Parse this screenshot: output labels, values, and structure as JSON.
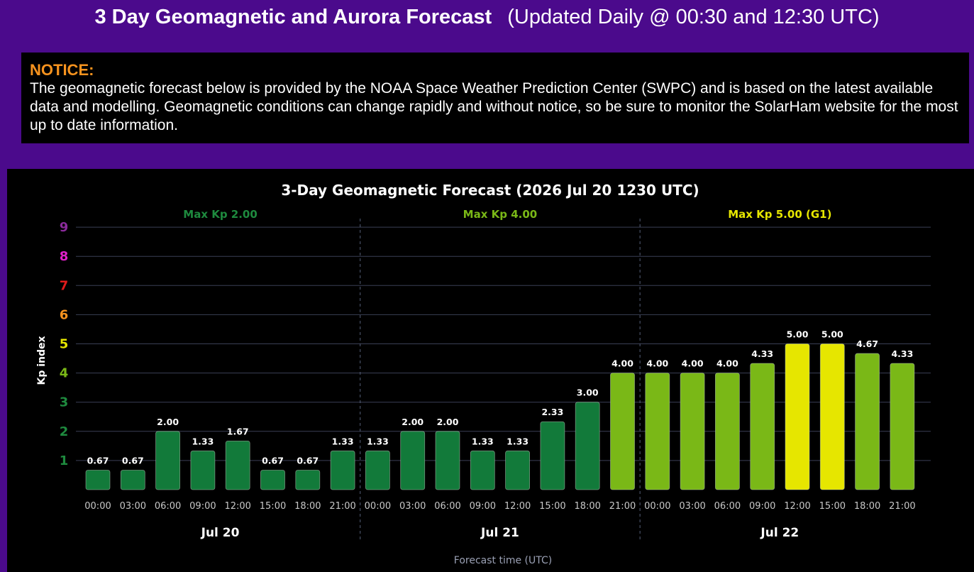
{
  "page": {
    "title_main": "3 Day Geomagnetic and Aurora Forecast",
    "title_sub": "(Updated Daily @ 00:30 and 12:30 UTC)"
  },
  "notice": {
    "heading": "NOTICE:",
    "body": "The geomagnetic forecast below is provided by the NOAA Space Weather Prediction Center (SWPC) and is based on the latest available data and modelling. Geomagnetic conditions can change rapidly and without notice, so be sure to monitor the SolarHam website for the most up to date information."
  },
  "chart_data": {
    "type": "bar",
    "title": "3-Day Geomagnetic Forecast (2026 Jul 20 1230 UTC)",
    "ylabel": "Kp index",
    "xlabel": "Forecast time (UTC)",
    "ylim": [
      0,
      9
    ],
    "grid": true,
    "y_ticks": [
      {
        "label": "1",
        "color": "#1e8a3e"
      },
      {
        "label": "2",
        "color": "#1e8a3e"
      },
      {
        "label": "3",
        "color": "#1e8a3e"
      },
      {
        "label": "4",
        "color": "#7ab817"
      },
      {
        "label": "5",
        "color": "#e6e600"
      },
      {
        "label": "6",
        "color": "#f7931e"
      },
      {
        "label": "7",
        "color": "#e01b1b"
      },
      {
        "label": "8",
        "color": "#e020c8"
      },
      {
        "label": "9",
        "color": "#8a2a9a"
      }
    ],
    "days": [
      {
        "label": "Jul 20",
        "max_label": "Max Kp 2.00",
        "max_color": "#1e8a3e"
      },
      {
        "label": "Jul 21",
        "max_label": "Max Kp 4.00",
        "max_color": "#7ab817"
      },
      {
        "label": "Jul 22",
        "max_label": "Max Kp 5.00 (G1)",
        "max_color": "#e6e600"
      }
    ],
    "categories": [
      "00:00",
      "03:00",
      "06:00",
      "09:00",
      "12:00",
      "15:00",
      "18:00",
      "21:00",
      "00:00",
      "03:00",
      "06:00",
      "09:00",
      "12:00",
      "15:00",
      "18:00",
      "21:00",
      "00:00",
      "03:00",
      "06:00",
      "09:00",
      "12:00",
      "15:00",
      "18:00",
      "21:00"
    ],
    "values": [
      0.67,
      0.67,
      2.0,
      1.33,
      1.67,
      0.67,
      0.67,
      1.33,
      1.33,
      2.0,
      2.0,
      1.33,
      1.33,
      2.33,
      3.0,
      4.0,
      4.0,
      4.0,
      4.0,
      4.33,
      5.0,
      5.0,
      4.67,
      4.33
    ],
    "value_labels": [
      "0.67",
      "0.67",
      "2.00",
      "1.33",
      "1.67",
      "0.67",
      "0.67",
      "1.33",
      "1.33",
      "2.00",
      "2.00",
      "1.33",
      "1.33",
      "2.33",
      "3.00",
      "4.00",
      "4.00",
      "4.00",
      "4.00",
      "4.33",
      "5.00",
      "5.00",
      "4.67",
      "4.33"
    ],
    "colors": {
      "quiet": "#127a3a",
      "active": "#7ab817",
      "storm_g1": "#e6e600",
      "grid": "#3a3f55",
      "divider": "#56607a",
      "axis_text": "#c8c8c8"
    }
  }
}
